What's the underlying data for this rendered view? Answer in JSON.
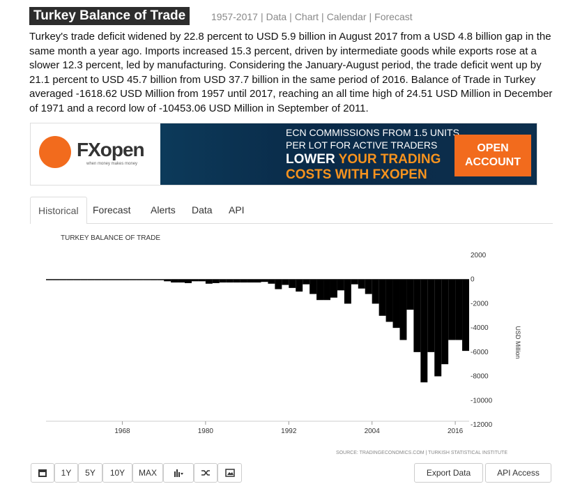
{
  "header": {
    "title": "Turkey Balance of Trade",
    "links": [
      "1957-2017",
      "Data",
      "Chart",
      "Calendar",
      "Forecast"
    ]
  },
  "description": "Turkey's trade deficit widened by 22.8 percent to USD 5.9 billion in August 2017 from a USD 4.8 billion gap in the same month a year ago. Imports increased 15.3 percent, driven by intermediate goods while exports rose at a slower 12.3 percent, led by manufacturing. Considering the January-August period, the trade deficit went up by 21.1 percent to USD 45.7 billion from USD 37.7 billion in the same period of 2016. Balance of Trade in Turkey averaged -1618.62 USD Million from 1957 until 2017, reaching an all time high of 24.51 USD Million in December of 1971 and a record low of -10453.06 USD Million in September of 2011.",
  "ad": {
    "brand": "FXopen",
    "slogan": "when money makes money",
    "line1": "ECN COMMISSIONS FROM 1.5 UNITS",
    "line2": "PER LOT FOR ACTIVE TRADERS",
    "headline_white": "LOWER",
    "headline_orange": "YOUR TRADING",
    "headline2_orange": "COSTS WITH FXOPEN",
    "button": "OPEN ACCOUNT"
  },
  "tabs": [
    "Historical",
    "Forecast",
    "Alerts",
    "Data",
    "API"
  ],
  "chart_data": {
    "type": "bar",
    "title": "TURKEY BALANCE OF TRADE",
    "y_label": "USD Million",
    "source": "SOURCE: TRADINGECONOMICS.COM | TURKISH STATISTICAL INSTITUTE",
    "color": "#000000",
    "grid": false,
    "x": [
      1957,
      1958,
      1959,
      1960,
      1961,
      1962,
      1963,
      1964,
      1965,
      1966,
      1967,
      1968,
      1969,
      1970,
      1971,
      1972,
      1973,
      1974,
      1975,
      1976,
      1977,
      1978,
      1979,
      1980,
      1981,
      1982,
      1983,
      1984,
      1985,
      1986,
      1987,
      1988,
      1989,
      1990,
      1991,
      1992,
      1993,
      1994,
      1995,
      1996,
      1997,
      1998,
      1999,
      2000,
      2001,
      2002,
      2003,
      2004,
      2005,
      2006,
      2007,
      2008,
      2009,
      2010,
      2011,
      2012,
      2013,
      2014,
      2015,
      2016,
      2017
    ],
    "values": [
      -30,
      -20,
      -25,
      -30,
      -30,
      -35,
      -40,
      -25,
      -20,
      -20,
      -25,
      -30,
      -30,
      -35,
      -50,
      -60,
      -60,
      -150,
      -250,
      -250,
      -300,
      -150,
      -150,
      -350,
      -300,
      -250,
      -250,
      -250,
      -250,
      -250,
      -250,
      -200,
      -350,
      -800,
      -450,
      -700,
      -1000,
      -400,
      -1200,
      -1700,
      -1700,
      -1500,
      -900,
      -2000,
      -400,
      -750,
      -1200,
      -2000,
      -3000,
      -3500,
      -4000,
      -5000,
      -2500,
      -6000,
      -8500,
      -6000,
      -8000,
      -7000,
      -5000,
      -5000,
      -5900
    ],
    "xlim": [
      1957,
      2018
    ],
    "xticks": [
      1968,
      1980,
      1992,
      2004,
      2016
    ],
    "ylim": [
      -12000,
      2000
    ],
    "yticks": [
      2000,
      0,
      -2000,
      -4000,
      -6000,
      -8000,
      -10000,
      -12000
    ]
  },
  "toolbar": {
    "ranges": [
      "1Y",
      "5Y",
      "10Y",
      "MAX"
    ],
    "export": "Export Data",
    "api": "API Access"
  }
}
